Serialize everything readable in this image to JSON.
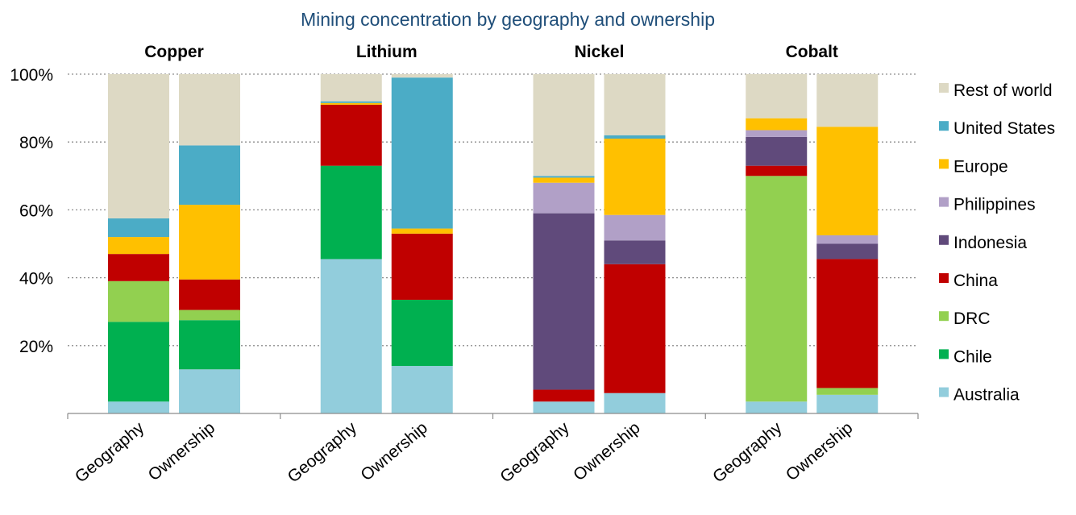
{
  "chart_data": {
    "type": "bar",
    "stacked": true,
    "title": "Mining concentration by geography and ownership",
    "yticks": [
      "100%",
      "80%",
      "60%",
      "40%",
      "20%"
    ],
    "ylim": [
      0,
      100
    ],
    "grid": "horizontal-dotted",
    "legend_position": "right",
    "panels": [
      {
        "name": "Copper",
        "categories": [
          "Geography",
          "Ownership"
        ]
      },
      {
        "name": "Lithium",
        "categories": [
          "Geography",
          "Ownership"
        ]
      },
      {
        "name": "Nickel",
        "categories": [
          "Geography",
          "Ownership"
        ]
      },
      {
        "name": "Cobalt",
        "categories": [
          "Geography",
          "Ownership"
        ]
      }
    ],
    "series": [
      {
        "name": "Australia",
        "color": "#92cddc",
        "values": [
          [
            3.5,
            13
          ],
          [
            45.5,
            14
          ],
          [
            3.5,
            6
          ],
          [
            3.5,
            5.5
          ]
        ]
      },
      {
        "name": "Chile",
        "color": "#00b050",
        "values": [
          [
            23.5,
            14.5
          ],
          [
            27.5,
            19.5
          ],
          [
            0,
            0
          ],
          [
            0,
            0
          ]
        ]
      },
      {
        "name": "DRC",
        "color": "#92d050",
        "values": [
          [
            12,
            3
          ],
          [
            0,
            0
          ],
          [
            0,
            0
          ],
          [
            66.5,
            2
          ]
        ]
      },
      {
        "name": "China",
        "color": "#c00000",
        "values": [
          [
            8,
            9
          ],
          [
            18,
            19.5
          ],
          [
            3.5,
            38
          ],
          [
            3,
            38
          ]
        ]
      },
      {
        "name": "Indonesia",
        "color": "#604a7b",
        "values": [
          [
            0,
            0
          ],
          [
            0,
            0
          ],
          [
            52,
            7
          ],
          [
            8.5,
            4.5
          ]
        ]
      },
      {
        "name": "Philippines",
        "color": "#b1a0c7",
        "values": [
          [
            0,
            0
          ],
          [
            0,
            0
          ],
          [
            9,
            7.5
          ],
          [
            2,
            2.5
          ]
        ]
      },
      {
        "name": "Europe",
        "color": "#ffc000",
        "values": [
          [
            5,
            22
          ],
          [
            0.5,
            1.5
          ],
          [
            1.5,
            22.5
          ],
          [
            3.5,
            32
          ]
        ]
      },
      {
        "name": "United States",
        "color": "#4bacc6",
        "values": [
          [
            5.5,
            17.5
          ],
          [
            0.5,
            44.5
          ],
          [
            0.5,
            1
          ],
          [
            0,
            0
          ]
        ]
      },
      {
        "name": "Rest of world",
        "color": "#ddd9c4",
        "values": [
          [
            42.5,
            21
          ],
          [
            8,
            1
          ],
          [
            30,
            18
          ],
          [
            13,
            15.5
          ]
        ]
      }
    ]
  }
}
